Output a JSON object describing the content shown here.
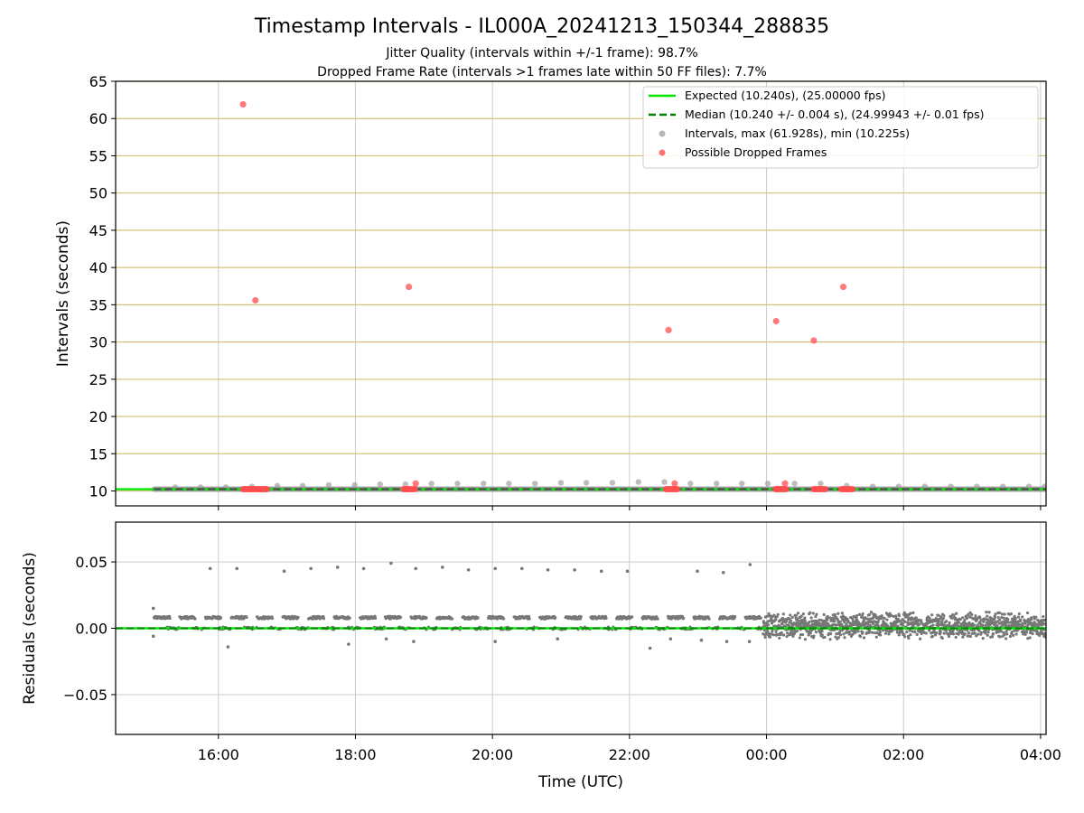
{
  "title": "Timestamp Intervals - IL000A_20241213_150344_288835",
  "subtitle1": "Jitter Quality (intervals within +/-1 frame): 98.7%",
  "subtitle2": "Dropped Frame Rate (intervals >1 frames late within 50 FF files): 7.7%",
  "colors": {
    "expected": "#00e600",
    "median": "#008000",
    "intervals": "#999999",
    "dropped": "#ff4d4d",
    "residuals": "#777777",
    "hgrid_top": "#d4c27a",
    "grid": "#cccccc"
  },
  "chart_data": [
    {
      "type": "scatter",
      "title": "",
      "xlabel": "",
      "ylabel": "Intervals (seconds)",
      "x_unit": "hours since 2024-12-13 00:00 UTC",
      "xlim": [
        14.5,
        28.08
      ],
      "ylim": [
        8,
        65
      ],
      "x_ticks": [
        16,
        18,
        20,
        22,
        24,
        26,
        28
      ],
      "y_ticks": [
        10,
        15,
        20,
        25,
        30,
        35,
        40,
        45,
        50,
        55,
        60,
        65
      ],
      "grid": "on",
      "legend_position": "top-right",
      "legend": [
        "Expected (10.240s), (25.00000 fps)",
        "Median (10.240 +/- 0.004 s), (24.99943 +/- 0.01 fps)",
        "Intervals, max (61.928s), min (10.225s)",
        "Possible Dropped Frames"
      ],
      "expected_value": 10.24,
      "median_value": 10.24,
      "intervals": {
        "baseline": 10.24,
        "x_start": 15.06,
        "x_end": 28.08,
        "periodic_bumps": [
          [
            15.37,
            10.5
          ],
          [
            15.74,
            10.5
          ],
          [
            16.11,
            10.5
          ],
          [
            16.49,
            10.6
          ],
          [
            16.86,
            10.7
          ],
          [
            17.23,
            10.7
          ],
          [
            17.61,
            10.8
          ],
          [
            17.99,
            10.8
          ],
          [
            18.36,
            10.9
          ],
          [
            18.73,
            10.9
          ],
          [
            19.11,
            11.0
          ],
          [
            19.49,
            11.0
          ],
          [
            19.87,
            11.0
          ],
          [
            20.24,
            11.0
          ],
          [
            20.62,
            11.0
          ],
          [
            21.0,
            11.1
          ],
          [
            21.37,
            11.1
          ],
          [
            21.75,
            11.1
          ],
          [
            22.13,
            11.2
          ],
          [
            22.51,
            11.2
          ],
          [
            22.89,
            11.0
          ],
          [
            23.27,
            11.0
          ],
          [
            23.64,
            11.0
          ],
          [
            24.02,
            11.0
          ],
          [
            24.41,
            11.0
          ],
          [
            24.79,
            11.0
          ],
          [
            25.17,
            10.7
          ],
          [
            25.55,
            10.6
          ],
          [
            25.93,
            10.6
          ],
          [
            26.31,
            10.6
          ],
          [
            26.69,
            10.6
          ],
          [
            27.07,
            10.6
          ],
          [
            27.45,
            10.6
          ],
          [
            27.83,
            10.6
          ],
          [
            28.06,
            10.6
          ]
        ]
      },
      "dropped_frames": {
        "spikes": [
          [
            16.36,
            61.9
          ],
          [
            16.54,
            35.6
          ],
          [
            18.78,
            37.4
          ],
          [
            22.57,
            31.6
          ],
          [
            24.14,
            32.8
          ],
          [
            24.69,
            30.2
          ],
          [
            25.12,
            37.4
          ],
          [
            18.88,
            11.0
          ],
          [
            22.66,
            11.0
          ],
          [
            24.27,
            11.0
          ]
        ],
        "clusters_at_baseline": [
          [
            16.36,
            16.71
          ],
          [
            18.7,
            18.87
          ],
          [
            22.53,
            22.7
          ],
          [
            24.13,
            24.29
          ],
          [
            24.69,
            24.86
          ],
          [
            25.09,
            25.26
          ]
        ]
      }
    },
    {
      "type": "scatter",
      "title": "",
      "xlabel": "Time (UTC)",
      "ylabel": "Residuals (seconds)",
      "x_unit": "hours since 2024-12-13 00:00 UTC",
      "xlim": [
        14.5,
        28.08
      ],
      "ylim": [
        -0.08,
        0.08
      ],
      "x_ticks": [
        16,
        18,
        20,
        22,
        24,
        26,
        28
      ],
      "x_tick_labels": [
        "16:00",
        "18:00",
        "20:00",
        "22:00",
        "00:00",
        "02:00",
        "04:00"
      ],
      "y_ticks": [
        0.05,
        0.0,
        -0.05
      ],
      "y_tick_labels": [
        "0.05",
        "0.00",
        "−0.05"
      ],
      "grid": "on",
      "zero_line": 0.0,
      "outliers_high": [
        [
          15.05,
          0.015
        ],
        [
          15.88,
          0.045
        ],
        [
          16.27,
          0.045
        ],
        [
          16.96,
          0.043
        ],
        [
          17.35,
          0.045
        ],
        [
          17.74,
          0.046
        ],
        [
          18.12,
          0.045
        ],
        [
          18.52,
          0.049
        ],
        [
          18.88,
          0.045
        ],
        [
          19.27,
          0.046
        ],
        [
          19.65,
          0.044
        ],
        [
          20.04,
          0.045
        ],
        [
          20.43,
          0.045
        ],
        [
          20.81,
          0.044
        ],
        [
          21.2,
          0.044
        ],
        [
          21.59,
          0.043
        ],
        [
          21.97,
          0.043
        ],
        [
          22.99,
          0.043
        ],
        [
          23.37,
          0.042
        ],
        [
          23.76,
          0.048
        ]
      ],
      "outliers_low": [
        [
          15.05,
          -0.006
        ],
        [
          16.14,
          -0.014
        ],
        [
          17.9,
          -0.012
        ],
        [
          22.3,
          -0.015
        ],
        [
          22.6,
          -0.008
        ],
        [
          18.45,
          -0.008
        ],
        [
          18.85,
          -0.01
        ],
        [
          20.04,
          -0.01
        ],
        [
          20.95,
          -0.008
        ],
        [
          23.05,
          -0.009
        ],
        [
          23.42,
          -0.01
        ],
        [
          23.75,
          -0.01
        ]
      ],
      "segments": {
        "early_step": {
          "x_range": [
            15.06,
            23.95
          ],
          "level": 0.008,
          "spread": 0.001
        },
        "early_zero": {
          "x_range": [
            15.06,
            23.95
          ],
          "level": 0.0,
          "spread": 0.001
        },
        "late_noise": {
          "x_range": [
            23.95,
            28.08
          ],
          "center": 0.002,
          "spread": 0.011
        }
      }
    }
  ]
}
